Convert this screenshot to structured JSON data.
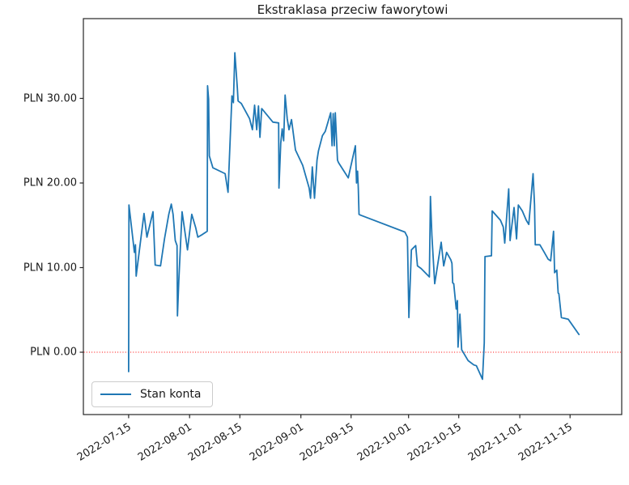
{
  "figure": {
    "title": "Ekstraklasa przeciw faworytowi",
    "legend": {
      "label": "Stan konta"
    },
    "colors": {
      "line": "#1f77b4",
      "zero_line": "#ff0000",
      "axis": "#262626",
      "text": "#1a1a1a",
      "background": "#ffffff",
      "legend_border": "#cccccc"
    }
  },
  "chart_data": {
    "type": "line",
    "title": "Ekstraklasa przeciw faworytowi",
    "ylabel_format": "PLN {value}.00",
    "x_unit": "days since 2022-07-15",
    "xlim_days": [
      -12.6,
      137.4
    ],
    "ylim": [
      -7.37,
      39.43
    ],
    "grid": false,
    "legend_position": "lower left",
    "zero_line": {
      "value": 0,
      "color": "#ff0000",
      "style": "dotted"
    },
    "x_ticks": [
      {
        "label": "2022-07-15",
        "day": 0
      },
      {
        "label": "2022-08-01",
        "day": 17
      },
      {
        "label": "2022-08-15",
        "day": 31
      },
      {
        "label": "2022-09-01",
        "day": 48
      },
      {
        "label": "2022-09-15",
        "day": 62
      },
      {
        "label": "2022-10-01",
        "day": 78
      },
      {
        "label": "2022-10-15",
        "day": 92
      },
      {
        "label": "2022-11-01",
        "day": 109
      },
      {
        "label": "2022-11-15",
        "day": 123
      }
    ],
    "y_ticks": [
      {
        "label": "PLN 30.00",
        "value": 30
      },
      {
        "label": "PLN 20.00",
        "value": 20
      },
      {
        "label": "PLN 10.00",
        "value": 10
      },
      {
        "label": "PLN 0.00",
        "value": 0
      }
    ],
    "series": [
      {
        "name": "Stan konta",
        "color": "#1f77b4",
        "points": [
          [
            0,
            0
          ],
          [
            0,
            -2.3
          ],
          [
            0.1,
            17.4
          ],
          [
            1.3,
            13.0
          ],
          [
            1.6,
            11.8
          ],
          [
            1.9,
            12.7
          ],
          [
            2.1,
            9.0
          ],
          [
            4.3,
            16.4
          ],
          [
            5.1,
            13.6
          ],
          [
            6.8,
            16.6
          ],
          [
            7.4,
            10.3
          ],
          [
            8.9,
            10.2
          ],
          [
            10,
            13.4
          ],
          [
            11.2,
            16.3
          ],
          [
            11.9,
            17.5
          ],
          [
            12.4,
            16.3
          ],
          [
            13,
            13.2
          ],
          [
            13.5,
            12.6
          ],
          [
            13.6,
            4.3
          ],
          [
            14,
            8.5
          ],
          [
            14.9,
            16.6
          ],
          [
            16.4,
            12.1
          ],
          [
            17.6,
            16.3
          ],
          [
            18.7,
            14.7
          ],
          [
            19.3,
            13.6
          ],
          [
            20.5,
            13.9
          ],
          [
            21.9,
            14.3
          ],
          [
            22,
            31.5
          ],
          [
            22.3,
            29.9
          ],
          [
            22.5,
            23.2
          ],
          [
            23.5,
            21.8
          ],
          [
            26.9,
            21.1
          ],
          [
            27.7,
            18.9
          ],
          [
            28.8,
            30.3
          ],
          [
            29.2,
            29.5
          ],
          [
            29.6,
            35.4
          ],
          [
            30.3,
            31.2
          ],
          [
            30.5,
            29.7
          ],
          [
            31.4,
            29.4
          ],
          [
            33.7,
            27.6
          ],
          [
            34.5,
            26.3
          ],
          [
            35.1,
            29.2
          ],
          [
            35.7,
            26.3
          ],
          [
            36.2,
            29.1
          ],
          [
            36.6,
            25.4
          ],
          [
            37.1,
            28.8
          ],
          [
            40.2,
            27.2
          ],
          [
            41.8,
            27.1
          ],
          [
            41.9,
            19.4
          ],
          [
            42.4,
            24.7
          ],
          [
            42.8,
            26.4
          ],
          [
            43.2,
            25.0
          ],
          [
            43.6,
            30.4
          ],
          [
            44.2,
            27.6
          ],
          [
            44.7,
            26.3
          ],
          [
            45.4,
            27.5
          ],
          [
            46.5,
            23.9
          ],
          [
            48.5,
            22.1
          ],
          [
            50.3,
            19.4
          ],
          [
            50.7,
            18.2
          ],
          [
            51.2,
            21.9
          ],
          [
            51.8,
            18.2
          ],
          [
            52.5,
            22.7
          ],
          [
            52.9,
            23.8
          ],
          [
            54,
            25.6
          ],
          [
            54.8,
            26.1
          ],
          [
            56.3,
            28.3
          ],
          [
            56.7,
            24.4
          ],
          [
            57,
            28.2
          ],
          [
            57.3,
            24.4
          ],
          [
            57.6,
            28.3
          ],
          [
            58.2,
            22.7
          ],
          [
            58.5,
            22.4
          ],
          [
            60,
            21.4
          ],
          [
            61.2,
            20.6
          ],
          [
            63.2,
            24.4
          ],
          [
            63.5,
            20.0
          ],
          [
            63.8,
            21.4
          ],
          [
            64,
            19.4
          ],
          [
            64.2,
            16.3
          ],
          [
            64.6,
            16.2
          ],
          [
            77,
            14.2
          ],
          [
            77.7,
            13.6
          ],
          [
            78.1,
            4.1
          ],
          [
            78.8,
            12.1
          ],
          [
            80,
            12.6
          ],
          [
            80.5,
            10.2
          ],
          [
            81.5,
            9.9
          ],
          [
            83.8,
            8.9
          ],
          [
            84.1,
            18.4
          ],
          [
            84.5,
            13.8
          ],
          [
            85.3,
            8.1
          ],
          [
            87.1,
            13.0
          ],
          [
            87.8,
            10.2
          ],
          [
            88.6,
            11.8
          ],
          [
            89.8,
            10.9
          ],
          [
            90.1,
            10.5
          ],
          [
            90.3,
            8.2
          ],
          [
            90.6,
            8.1
          ],
          [
            91.3,
            5.1
          ],
          [
            91.6,
            6.1
          ],
          [
            91.8,
            0.6
          ],
          [
            92.3,
            4.5
          ],
          [
            92.8,
            0.3
          ],
          [
            94.6,
            -1.0
          ],
          [
            96.2,
            -1.5
          ],
          [
            96.9,
            -1.6
          ],
          [
            98.6,
            -3.2
          ],
          [
            99.1,
            1.1
          ],
          [
            99.3,
            11.3
          ],
          [
            101.1,
            11.4
          ],
          [
            101.3,
            16.7
          ],
          [
            103.6,
            15.6
          ],
          [
            104.4,
            14.8
          ],
          [
            104.8,
            12.9
          ],
          [
            105.9,
            19.3
          ],
          [
            106.3,
            13.2
          ],
          [
            107.4,
            17.1
          ],
          [
            108.1,
            13.4
          ],
          [
            108.6,
            17.4
          ],
          [
            109.7,
            16.7
          ],
          [
            110.8,
            15.6
          ],
          [
            111.5,
            15.1
          ],
          [
            112.7,
            21.1
          ],
          [
            113.1,
            17.4
          ],
          [
            113.3,
            12.7
          ],
          [
            114.6,
            12.7
          ],
          [
            115.7,
            11.9
          ],
          [
            116.9,
            11.0
          ],
          [
            117.6,
            10.8
          ],
          [
            118.4,
            14.3
          ],
          [
            118.7,
            9.4
          ],
          [
            119.3,
            9.7
          ],
          [
            119.5,
            8.4
          ],
          [
            119.7,
            7.0
          ],
          [
            119.9,
            6.9
          ],
          [
            120.6,
            4.1
          ],
          [
            122.5,
            3.9
          ],
          [
            125.5,
            2.1
          ]
        ]
      }
    ]
  }
}
